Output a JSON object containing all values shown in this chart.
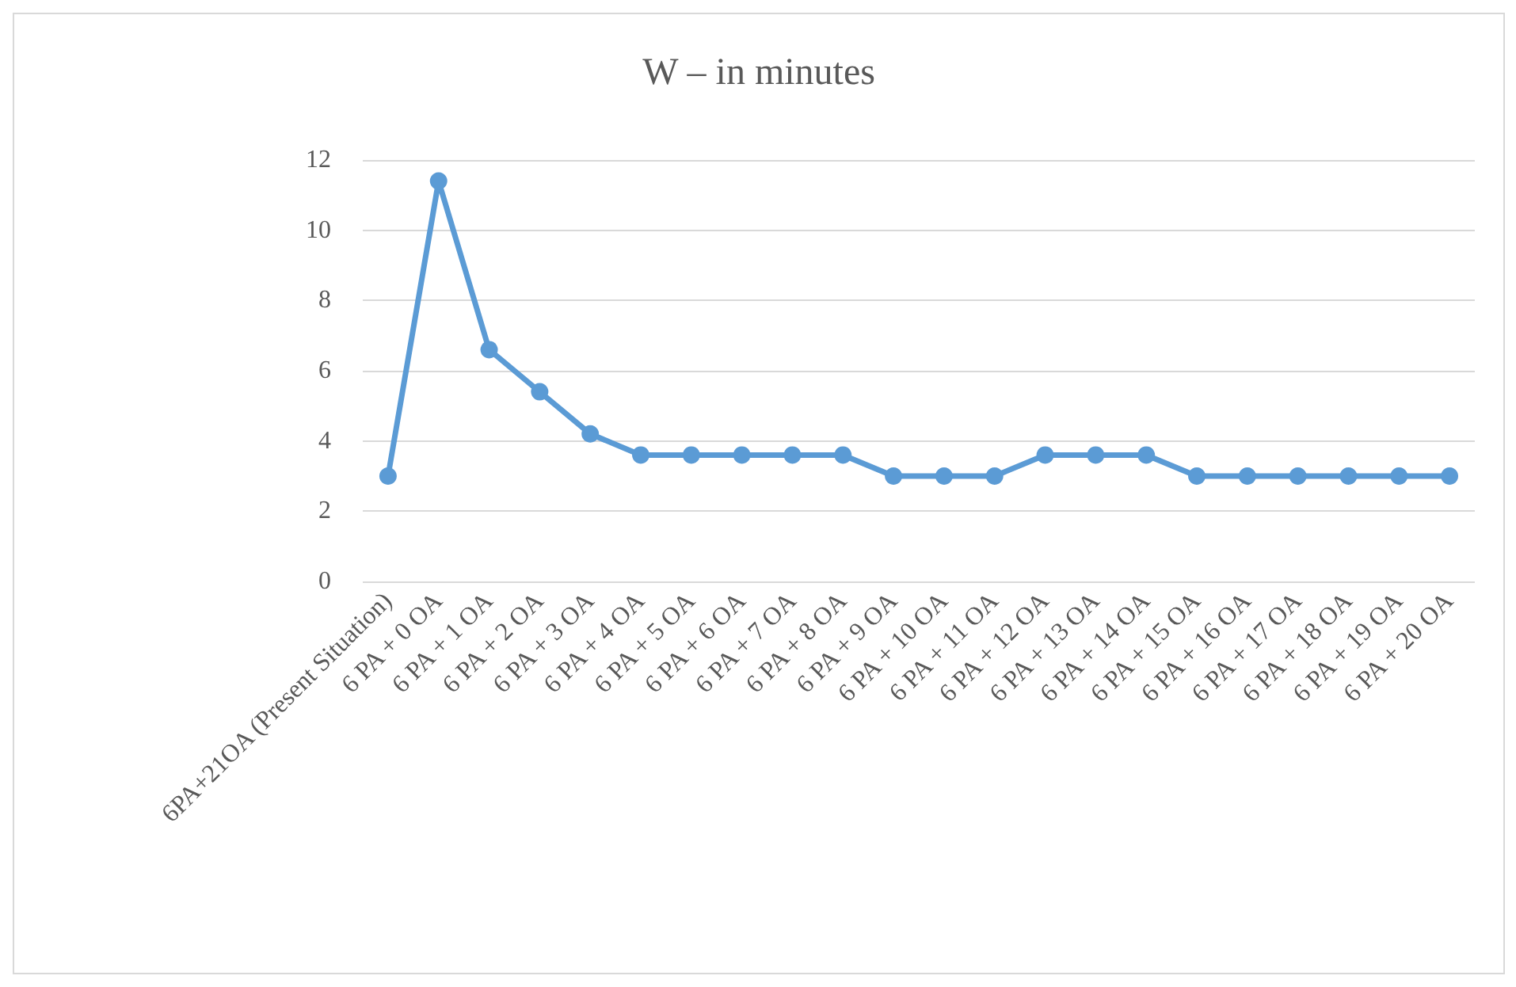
{
  "chart_data": {
    "type": "line",
    "title": "W – in minutes",
    "categories": [
      "6PA+21OA (Present Situation)",
      "6 PA + 0 OA",
      "6 PA + 1 OA",
      "6 PA + 2 OA",
      "6 PA + 3 OA",
      "6 PA + 4 OA",
      "6 PA + 5 OA",
      "6 PA + 6 OA",
      "6 PA + 7 OA",
      "6 PA + 8 OA",
      "6 PA + 9 OA",
      "6 PA + 10 OA",
      "6 PA + 11 OA",
      "6 PA + 12 OA",
      "6 PA + 13 OA",
      "6 PA + 14 OA",
      "6 PA + 15 OA",
      "6 PA + 16 OA",
      "6 PA + 17 OA",
      "6 PA + 18 OA",
      "6 PA + 19 OA",
      "6 PA + 20 OA"
    ],
    "series": [
      {
        "color": "#5b9bd5",
        "values": [
          3,
          11.4,
          6.6,
          5.4,
          4.2,
          3.6,
          3.6,
          3.6,
          3.6,
          3.6,
          3,
          3,
          3,
          3.6,
          3.6,
          3.6,
          3,
          3,
          3,
          3,
          3,
          3
        ]
      }
    ],
    "ylim": [
      0,
      12
    ],
    "yticks": [
      0,
      2,
      4,
      6,
      8,
      10,
      12
    ],
    "grid": "y",
    "marker": "circle",
    "line_style": "solid"
  }
}
